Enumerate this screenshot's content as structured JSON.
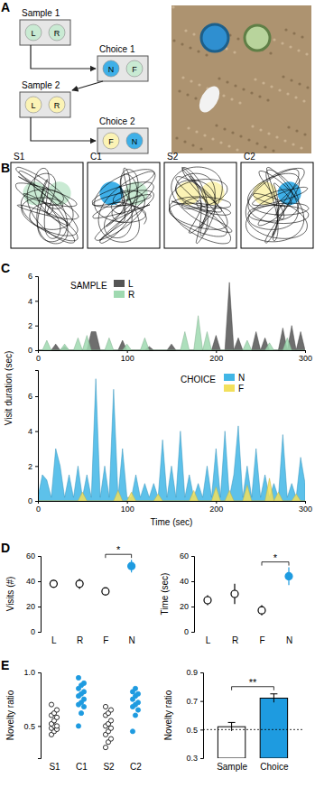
{
  "panel_labels": [
    "A",
    "B",
    "C",
    "D",
    "E"
  ],
  "diagram": {
    "stages": [
      {
        "label": "Sample 1",
        "objects": [
          {
            "label": "L",
            "color": "#c9ead3"
          },
          {
            "label": "R",
            "color": "#c9ead3"
          }
        ]
      },
      {
        "label": "Choice 1",
        "objects": [
          {
            "label": "N",
            "color": "#3fb0e8"
          },
          {
            "label": "F",
            "color": "#c9ead3"
          }
        ]
      },
      {
        "label": "Sample 2",
        "objects": [
          {
            "label": "L",
            "color": "#fbf3b5"
          },
          {
            "label": "R",
            "color": "#fbf3b5"
          }
        ]
      },
      {
        "label": "Choice 2",
        "objects": [
          {
            "label": "F",
            "color": "#fbf3b5"
          },
          {
            "label": "N",
            "color": "#3fb0e8"
          }
        ]
      }
    ],
    "arenas": [
      {
        "label": "S1",
        "objects": [
          {
            "color": "#c9ead3"
          },
          {
            "color": "#c9ead3"
          }
        ]
      },
      {
        "label": "C1",
        "objects": [
          {
            "color": "#3fb0e8"
          },
          {
            "color": "#c9ead3"
          }
        ]
      },
      {
        "label": "S2",
        "objects": [
          {
            "color": "#fbf3b5"
          },
          {
            "color": "#fbf3b5"
          }
        ]
      },
      {
        "label": "C2",
        "objects": [
          {
            "color": "#fbf3b5"
          },
          {
            "color": "#3fb0e8"
          }
        ]
      }
    ]
  },
  "chart_data": [
    {
      "type": "area",
      "title": "SAMPLE",
      "ylabel": "Visit duration (sec)",
      "x": [
        0,
        5,
        10,
        15,
        20,
        25,
        30,
        35,
        40,
        45,
        50,
        55,
        60,
        65,
        70,
        75,
        80,
        85,
        90,
        95,
        100,
        105,
        110,
        115,
        120,
        125,
        130,
        135,
        140,
        145,
        150,
        155,
        160,
        165,
        170,
        175,
        180,
        185,
        190,
        195,
        200,
        205,
        210,
        215,
        220,
        225,
        230,
        235,
        240,
        245,
        250,
        255,
        260,
        265,
        270,
        275,
        280,
        285,
        290,
        295,
        300
      ],
      "series": [
        {
          "name": "L",
          "color": "#555555",
          "values": [
            0,
            0,
            0,
            0,
            0.5,
            0,
            0.3,
            0,
            0,
            0,
            0,
            0,
            1.5,
            1.5,
            0,
            0,
            0,
            0,
            0,
            0.8,
            0,
            0,
            0,
            0,
            0,
            0.3,
            0,
            0,
            0,
            0,
            0.5,
            0,
            0,
            0,
            0,
            0,
            0,
            0,
            0,
            0,
            1.2,
            0,
            0,
            5.5,
            0,
            1.0,
            0,
            0,
            0,
            1.5,
            0,
            1.0,
            0,
            0,
            0,
            1.8,
            0,
            2.0,
            0,
            1.5,
            0
          ]
        },
        {
          "name": "R",
          "color": "#9fd9b0",
          "values": [
            0,
            0,
            0.8,
            0,
            0,
            0,
            0.5,
            0,
            0,
            1.0,
            0,
            1.2,
            0,
            0,
            0,
            0,
            1.0,
            0,
            0,
            0,
            0.5,
            0,
            0,
            0,
            1.0,
            0,
            0,
            0,
            0,
            0,
            0,
            0,
            0,
            1.5,
            0,
            0,
            2.8,
            0,
            1.5,
            0,
            0,
            0,
            0,
            0,
            0,
            0,
            0,
            0.8,
            0,
            0,
            0,
            0,
            0.6,
            0,
            0,
            0,
            1.0,
            0,
            0,
            0,
            0
          ]
        }
      ],
      "xlim": [
        0,
        300
      ],
      "xticks": [
        0,
        100,
        200,
        300
      ],
      "ylim": [
        0,
        6
      ],
      "yticks": [
        0,
        2,
        4,
        6
      ]
    },
    {
      "type": "area",
      "title": "CHOICE",
      "xlabel": "Time (sec)",
      "x": [
        0,
        5,
        10,
        15,
        20,
        25,
        30,
        35,
        40,
        45,
        50,
        55,
        60,
        65,
        70,
        75,
        80,
        85,
        90,
        95,
        100,
        105,
        110,
        115,
        120,
        125,
        130,
        135,
        140,
        145,
        150,
        155,
        160,
        165,
        170,
        175,
        180,
        185,
        190,
        195,
        200,
        205,
        210,
        215,
        220,
        225,
        230,
        235,
        240,
        245,
        250,
        255,
        260,
        265,
        270,
        275,
        280,
        285,
        290,
        295,
        300
      ],
      "series": [
        {
          "name": "N",
          "color": "#41b6e6",
          "values": [
            0.2,
            1.5,
            1.2,
            0.2,
            3.0,
            2.0,
            0.2,
            1.5,
            0.2,
            2.0,
            0.2,
            1.5,
            0.2,
            7.0,
            0.2,
            2.0,
            0.2,
            6.4,
            0.2,
            3.0,
            0.2,
            0.2,
            1.5,
            0.2,
            1.0,
            0.2,
            1.0,
            0.2,
            3.5,
            0.2,
            2.0,
            0.2,
            4.0,
            0.2,
            1.5,
            0.2,
            1.0,
            0.2,
            2.0,
            0.2,
            3.0,
            0.2,
            4.0,
            0.2,
            1.5,
            4.3,
            0.2,
            2.0,
            0.2,
            3.0,
            0.2,
            1.5,
            0.2,
            1.0,
            0.2,
            3.8,
            0.2,
            1.0,
            0.2,
            2.5,
            1.0
          ]
        },
        {
          "name": "F",
          "color": "#f2e05c",
          "values": [
            0,
            0,
            0,
            0,
            0,
            0,
            0,
            0,
            0,
            0,
            0.5,
            0,
            0,
            0,
            0,
            0,
            0,
            0,
            0.6,
            0,
            0,
            0.5,
            0,
            0,
            0,
            0,
            0,
            0.4,
            0,
            0,
            0,
            0,
            0,
            0,
            0,
            0.6,
            0,
            0,
            0,
            0,
            0.8,
            0,
            0,
            0.6,
            0,
            0,
            0,
            0.9,
            0,
            0,
            0,
            0,
            1.3,
            0,
            0.5,
            0,
            0,
            0,
            0.4,
            0,
            0
          ]
        }
      ],
      "xlim": [
        0,
        300
      ],
      "xticks": [
        0,
        100,
        200,
        300
      ],
      "ylim": [
        0,
        7.5
      ],
      "yticks": [
        0,
        2,
        4,
        6
      ]
    },
    {
      "type": "dot",
      "ylabel": "Visits (#)",
      "categories": [
        "L",
        "R",
        "F",
        "N"
      ],
      "values": [
        38,
        38,
        32,
        52
      ],
      "errors": [
        3,
        4,
        3,
        5
      ],
      "colors": [
        "white",
        "white",
        "white",
        "#1e9be0"
      ],
      "ylim": [
        0,
        60
      ],
      "yticks": [
        0,
        20,
        40,
        60
      ],
      "annotations": [
        {
          "text": "*",
          "between": [
            "F",
            "N"
          ]
        }
      ]
    },
    {
      "type": "dot",
      "ylabel": "Time (sec)",
      "categories": [
        "L",
        "R",
        "F",
        "N"
      ],
      "values": [
        25,
        30,
        17,
        44
      ],
      "errors": [
        4,
        8,
        4,
        7
      ],
      "colors": [
        "white",
        "white",
        "white",
        "#1e9be0"
      ],
      "ylim": [
        0,
        60
      ],
      "yticks": [
        0,
        20,
        40,
        60
      ],
      "annotations": [
        {
          "text": "*",
          "between": [
            "F",
            "N"
          ]
        }
      ]
    },
    {
      "type": "strip",
      "ylabel": "Novelty ratio",
      "categories": [
        "S1",
        "C1",
        "S2",
        "C2"
      ],
      "values": [
        [
          0.42,
          0.45,
          0.47,
          0.48,
          0.5,
          0.5,
          0.52,
          0.55,
          0.58,
          0.6,
          0.62,
          0.65,
          0.7
        ],
        [
          0.5,
          0.62,
          0.68,
          0.7,
          0.72,
          0.75,
          0.78,
          0.8,
          0.82,
          0.85,
          0.88,
          0.9,
          0.95
        ],
        [
          0.3,
          0.35,
          0.38,
          0.42,
          0.45,
          0.48,
          0.5,
          0.52,
          0.55,
          0.6,
          0.62,
          0.65,
          0.68
        ],
        [
          0.45,
          0.6,
          0.65,
          0.68,
          0.7,
          0.72,
          0.75,
          0.78,
          0.8,
          0.82,
          0.85
        ]
      ],
      "colors": [
        "white",
        "#1e9be0",
        "white",
        "#1e9be0"
      ],
      "ylim": [
        0.2,
        1.0
      ],
      "yticks": [
        0.5,
        {
          "value": 1,
          "label": "1.0"
        }
      ]
    },
    {
      "type": "bar",
      "ylabel": "Novelty ratio",
      "categories": [
        "Sample",
        "Choice"
      ],
      "values": [
        0.52,
        0.72
      ],
      "errors": [
        0.03,
        0.03
      ],
      "colors": [
        "white",
        "#1e9be0"
      ],
      "ylim": [
        0.3,
        0.9
      ],
      "yticks": [
        0.3,
        0.5,
        0.7,
        0.9
      ],
      "threshold": 0.5,
      "annotations": [
        {
          "text": "**",
          "between": [
            "Sample",
            "Choice"
          ]
        }
      ]
    }
  ]
}
